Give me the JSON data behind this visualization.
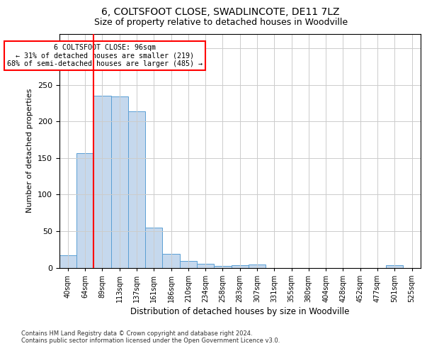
{
  "title": "6, COLTSFOOT CLOSE, SWADLINCOTE, DE11 7LZ",
  "subtitle": "Size of property relative to detached houses in Woodville",
  "xlabel": "Distribution of detached houses by size in Woodville",
  "ylabel": "Number of detached properties",
  "bar_color": "#c5d8ed",
  "bar_edge_color": "#5a9fd4",
  "bar_categories": [
    "40sqm",
    "64sqm",
    "89sqm",
    "113sqm",
    "137sqm",
    "161sqm",
    "186sqm",
    "210sqm",
    "234sqm",
    "258sqm",
    "283sqm",
    "307sqm",
    "331sqm",
    "355sqm",
    "380sqm",
    "404sqm",
    "428sqm",
    "452sqm",
    "477sqm",
    "501sqm",
    "525sqm"
  ],
  "bar_values": [
    17,
    157,
    235,
    234,
    214,
    55,
    19,
    9,
    5,
    2,
    3,
    4,
    0,
    0,
    0,
    0,
    0,
    0,
    0,
    3,
    0
  ],
  "ylim": [
    0,
    320
  ],
  "yticks": [
    0,
    50,
    100,
    150,
    200,
    250,
    300
  ],
  "red_line_x": 1.5,
  "annotation_box_text": "6 COLTSFOOT CLOSE: 96sqm\n← 31% of detached houses are smaller (219)\n68% of semi-detached houses are larger (485) →",
  "footer_line1": "Contains HM Land Registry data © Crown copyright and database right 2024.",
  "footer_line2": "Contains public sector information licensed under the Open Government Licence v3.0.",
  "background_color": "#ffffff",
  "grid_color": "#cccccc"
}
